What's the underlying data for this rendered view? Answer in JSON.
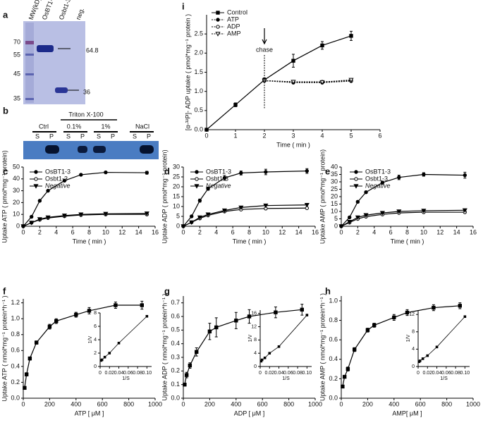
{
  "gels": {
    "a": {
      "label": "a",
      "axis_title": "MW(kD)",
      "lanes": [
        "OsBT1-3",
        "Osbt1-3",
        "neg."
      ],
      "markers": [
        "70",
        "55",
        "45",
        "35"
      ],
      "bands": [
        "64.8",
        "36"
      ]
    },
    "b": {
      "label": "b",
      "detergent": "Triton X-100",
      "conditions": [
        "Ctrl",
        "0.1%",
        "1%",
        "NaCl"
      ],
      "fractions": [
        [
          "S",
          "P"
        ],
        [
          "S",
          "P"
        ],
        [
          "S",
          "P"
        ],
        [
          "S",
          "P"
        ]
      ]
    }
  },
  "chart_data": [
    {
      "label": "i",
      "type": "line",
      "xlabel": "Time ( min )",
      "ylabel": "[α-³²P]- ADP uptake ( pmol*mg⁻¹ protein )",
      "x": [
        0,
        1,
        2,
        3,
        4,
        5
      ],
      "xlim": [
        0,
        6
      ],
      "xticks": [
        0,
        1,
        2,
        3,
        4,
        5,
        6
      ],
      "ylim": [
        0,
        3
      ],
      "yticks": [
        {
          "value": 0,
          "label": "0.0"
        },
        0.5,
        {
          "value": 1,
          "label": "1.0"
        },
        1.5,
        {
          "value": 2,
          "label": "2.0"
        },
        2.5
      ],
      "annotation": {
        "text": "chase",
        "x": 2
      },
      "legend": "upper left",
      "series": [
        {
          "name": "Control",
          "color": "#000",
          "marker": "square",
          "dash": false,
          "values": [
            0,
            0.65,
            1.3,
            1.8,
            2.2,
            2.45
          ],
          "errors": [
            0,
            0.05,
            0.05,
            0.17,
            0.1,
            0.12
          ]
        },
        {
          "name": "ATP",
          "color": "#000",
          "marker": "circle",
          "dash": true,
          "values": [
            null,
            null,
            1.28,
            1.23,
            1.23,
            1.27
          ]
        },
        {
          "name": "ADP",
          "color": "#000",
          "marker": "open-circle",
          "dash": true,
          "values": [
            null,
            null,
            1.28,
            1.25,
            1.25,
            1.28
          ]
        },
        {
          "name": "AMP",
          "color": "#000",
          "marker": "open-triangle",
          "dash": true,
          "values": [
            null,
            null,
            1.28,
            1.25,
            1.24,
            1.3
          ]
        }
      ]
    },
    {
      "label": "c",
      "type": "line",
      "xlabel": "Time ( min )",
      "ylabel": "Uptake ATP ( pmol*mg⁻¹ protein)",
      "x": [
        0,
        1,
        2,
        3,
        5,
        7,
        10,
        15
      ],
      "xlim": [
        0,
        16
      ],
      "xticks": [
        0,
        2,
        4,
        6,
        8,
        10,
        12,
        14,
        16
      ],
      "ylim": [
        0,
        50
      ],
      "yticks": [
        0,
        10,
        20,
        30,
        40,
        50
      ],
      "legend": "upper left",
      "series": [
        {
          "name": "OsBT1-3",
          "color": "#000",
          "marker": "circle",
          "values": [
            0,
            8,
            21.5,
            30,
            38.5,
            43.5,
            45.5,
            45.2
          ],
          "errors": [
            0,
            0.5,
            0.8,
            0.6,
            0.7,
            0.8,
            0.6,
            1.2
          ]
        },
        {
          "name": "Osbt1-3",
          "color": "#000",
          "marker": "open-circle",
          "values": [
            0,
            3,
            5.5,
            7,
            8.5,
            9.5,
            10,
            10
          ]
        },
        {
          "name": "Negative",
          "color": "#000",
          "marker": "triangle",
          "italic": true,
          "values": [
            0,
            3,
            6,
            7.5,
            9,
            10,
            10.5,
            10.8
          ]
        }
      ]
    },
    {
      "label": "d",
      "type": "line",
      "xlabel": "Time ( min )",
      "ylabel": "Uptake ADP ( pmol*mg⁻¹ protein)",
      "x": [
        0,
        1,
        2,
        3,
        5,
        7,
        10,
        15
      ],
      "xlim": [
        0,
        16
      ],
      "xticks": [
        0,
        2,
        4,
        6,
        8,
        10,
        12,
        14,
        16
      ],
      "ylim": [
        0,
        30
      ],
      "yticks": [
        0,
        5,
        10,
        15,
        20,
        25,
        30
      ],
      "legend": "upper left",
      "series": [
        {
          "name": "OsBT1-3",
          "color": "#000",
          "marker": "circle",
          "values": [
            0,
            5,
            13,
            19,
            24.5,
            27,
            27.5,
            28
          ],
          "errors": [
            0,
            0.5,
            0.8,
            0.8,
            1.2,
            1,
            1.4,
            1.2
          ]
        },
        {
          "name": "Osbt1-3",
          "color": "#000",
          "marker": "open-circle",
          "values": [
            0,
            2,
            4,
            5.5,
            7.5,
            8.5,
            9,
            9.2
          ]
        },
        {
          "name": "Negative",
          "color": "#000",
          "marker": "triangle",
          "italic": true,
          "values": [
            0,
            2,
            4.5,
            6,
            8,
            9.5,
            10.5,
            10.8
          ]
        }
      ]
    },
    {
      "label": "e",
      "type": "line",
      "xlabel": "Time ( min )",
      "ylabel": "Uptake AMP ( pmol*mg⁻¹ protein)",
      "x": [
        0,
        1,
        2,
        3,
        5,
        7,
        10,
        15
      ],
      "xlim": [
        0,
        16
      ],
      "xticks": [
        0,
        2,
        4,
        6,
        8,
        10,
        12,
        14,
        16
      ],
      "ylim": [
        0,
        40
      ],
      "yticks": [
        0,
        5,
        10,
        15,
        20,
        25,
        30,
        35,
        40
      ],
      "legend": "upper left",
      "series": [
        {
          "name": "OsBT1-3",
          "color": "#000",
          "marker": "circle",
          "values": [
            0,
            6,
            16.5,
            23,
            29.5,
            33,
            35,
            34.5
          ],
          "errors": [
            0,
            0.5,
            0.8,
            0.8,
            1,
            1.5,
            1.2,
            2
          ]
        },
        {
          "name": "Osbt1-3",
          "color": "#000",
          "marker": "open-circle",
          "values": [
            0,
            2.5,
            5,
            6.5,
            8,
            9,
            9.5,
            9.5
          ]
        },
        {
          "name": "Negative",
          "color": "#000",
          "marker": "triangle",
          "italic": true,
          "values": [
            0,
            3,
            6,
            7.5,
            9,
            10,
            10.5,
            10.8
          ]
        }
      ]
    },
    {
      "label": "f",
      "type": "line",
      "xlabel": "ATP [ μM ]",
      "ylabel": "Uptake ATP ( nmol*mg⁻¹ protein*h⁻¹ )",
      "x": [
        10,
        25,
        50,
        100,
        200,
        250,
        400,
        500,
        700,
        900
      ],
      "xlim": [
        0,
        1000
      ],
      "xticks": [
        0,
        200,
        400,
        600,
        800,
        1000
      ],
      "ylim": [
        0,
        1.25
      ],
      "yticks": [
        {
          "value": 0,
          "label": "0.0"
        },
        0.2,
        0.4,
        0.6,
        0.8,
        {
          "value": 1,
          "label": "1.0"
        },
        1.2
      ],
      "series": [
        {
          "color": "#000",
          "marker": "square",
          "values": [
            0.13,
            0.3,
            0.5,
            0.7,
            0.9,
            0.97,
            1.05,
            1.1,
            1.17,
            1.17
          ],
          "errors": [
            0.01,
            0.02,
            0.02,
            0.02,
            0.03,
            0.03,
            0.03,
            0.04,
            0.04,
            0.05
          ]
        }
      ],
      "inset": {
        "type": "line",
        "xlabel": "1/S",
        "ylabel": "1/V",
        "x": [
          0.002,
          0.004,
          0.01,
          0.02,
          0.04,
          0.1
        ],
        "xlim": [
          0,
          0.11
        ],
        "xticks": [
          0,
          0.02,
          0.04,
          0.06,
          0.08,
          {
            "value": 0.1,
            "label": "0.10"
          }
        ],
        "ylim": [
          0,
          8
        ],
        "yticks": [
          0,
          2,
          4,
          6,
          8
        ],
        "series": [
          {
            "color": "#000",
            "marker": "square",
            "values": [
              0.9,
              1,
              1.4,
              2,
              3.5,
              7.5
            ]
          }
        ]
      }
    },
    {
      "label": "g",
      "type": "line",
      "xlabel": "ADP [ μM ]",
      "ylabel": "Uptake ADP ( nmol*mg⁻¹ protein*h⁻¹ )",
      "x": [
        10,
        25,
        50,
        100,
        200,
        250,
        400,
        500,
        700,
        900
      ],
      "xlim": [
        0,
        1000
      ],
      "xticks": [
        0,
        200,
        400,
        600,
        800,
        1000
      ],
      "ylim": [
        0,
        0.75
      ],
      "yticks": [
        {
          "value": 0,
          "label": "0.0"
        },
        0.1,
        0.2,
        0.3,
        0.4,
        0.5,
        0.6,
        0.7
      ],
      "series": [
        {
          "color": "#000",
          "marker": "square",
          "values": [
            0.1,
            0.17,
            0.24,
            0.34,
            0.49,
            0.52,
            0.57,
            0.6,
            0.63,
            0.65
          ],
          "errors": [
            0.01,
            0.02,
            0.02,
            0.03,
            0.06,
            0.07,
            0.06,
            0.05,
            0.04,
            0.04
          ]
        }
      ],
      "inset": {
        "type": "line",
        "xlabel": "1/S",
        "ylabel": "1/V",
        "x": [
          0.002,
          0.004,
          0.01,
          0.02,
          0.04,
          0.1
        ],
        "xlim": [
          0,
          0.11
        ],
        "xticks": [
          0,
          0.02,
          0.04,
          0.06,
          0.08,
          {
            "value": 0.1,
            "label": "0.10"
          }
        ],
        "ylim": [
          0,
          17
        ],
        "yticks": [
          0,
          4,
          8,
          12,
          16
        ],
        "series": [
          {
            "color": "#000",
            "marker": "square",
            "values": [
              1.6,
              2,
              2.6,
              4,
              6,
              15.5
            ]
          }
        ]
      }
    },
    {
      "label": "h",
      "type": "line",
      "xlabel": "AMP[ μM ]",
      "ylabel": "Uptake AMP ( nmol*mg⁻¹ protein*h⁻¹ )",
      "x": [
        10,
        25,
        50,
        100,
        200,
        250,
        400,
        500,
        700,
        900
      ],
      "xlim": [
        0,
        1000
      ],
      "xticks": [
        0,
        200,
        400,
        600,
        800,
        1000
      ],
      "ylim": [
        0,
        1.05
      ],
      "yticks": [
        {
          "value": 0,
          "label": "0.0"
        },
        0.2,
        0.4,
        0.6,
        0.8,
        {
          "value": 1,
          "label": "1.0"
        }
      ],
      "series": [
        {
          "color": "#000",
          "marker": "square",
          "values": [
            0.12,
            0.22,
            0.3,
            0.5,
            0.7,
            0.75,
            0.83,
            0.88,
            0.93,
            0.95
          ],
          "errors": [
            0.01,
            0.01,
            0.02,
            0.02,
            0.02,
            0.02,
            0.03,
            0.03,
            0.03,
            0.03
          ]
        }
      ],
      "inset": {
        "type": "line",
        "xlabel": "1/S",
        "ylabel": "1/V",
        "x": [
          0.002,
          0.004,
          0.01,
          0.02,
          0.04,
          0.1
        ],
        "xlim": [
          0,
          0.11
        ],
        "xticks": [
          0,
          0.02,
          0.04,
          0.06,
          0.08,
          {
            "value": 0.1,
            "label": "0.10"
          }
        ],
        "ylim": [
          0,
          13
        ],
        "yticks": [
          0,
          4,
          8,
          12
        ],
        "series": [
          {
            "color": "#000",
            "marker": "square",
            "values": [
              1.1,
              1.3,
              1.8,
              2.5,
              4.5,
              11.5
            ]
          }
        ]
      }
    }
  ]
}
